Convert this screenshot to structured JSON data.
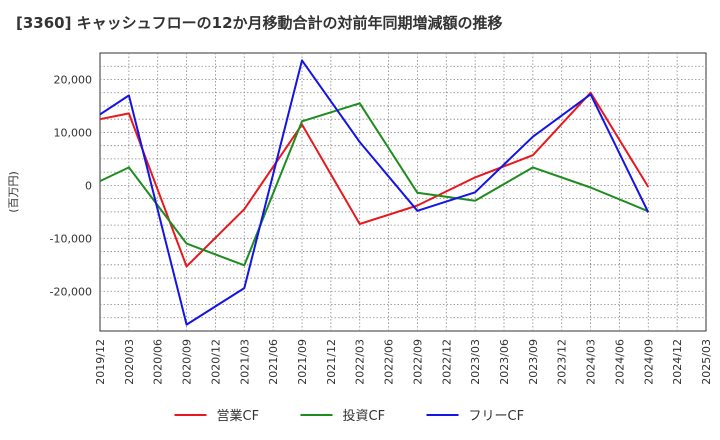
{
  "chart_data": {
    "type": "line",
    "title": "[3360]  キャッシュフローの12か月移動合計の対前年同期増減額の推移",
    "ylabel": "(百万円)",
    "xlabel": "",
    "categories": [
      "2019/12",
      "2020/03",
      "2020/06",
      "2020/09",
      "2020/12",
      "2021/03",
      "2021/06",
      "2021/09",
      "2021/12",
      "2022/03",
      "2022/06",
      "2022/09",
      "2022/12",
      "2023/03",
      "2023/06",
      "2023/09",
      "2023/12",
      "2024/03",
      "2024/06",
      "2024/09",
      "2024/12",
      "2025/03"
    ],
    "yticks": [
      20000,
      10000,
      0,
      -10000,
      -20000
    ],
    "ytick_labels": [
      "20,000",
      "10,000",
      "0",
      "-10,000",
      "-20,000"
    ],
    "ylim": [
      -27500,
      25000
    ],
    "grid": true,
    "legend_position": "bottom",
    "series": [
      {
        "name": "営業CF",
        "color": "#e8191e",
        "x": [
          "2019/12",
          "2020/03",
          "2020/09",
          "2021/03",
          "2021/09",
          "2022/03",
          "2022/09",
          "2023/03",
          "2023/09",
          "2024/03",
          "2024/09"
        ],
        "values": [
          12500,
          13600,
          -15300,
          -4500,
          11500,
          -7300,
          -3800,
          1500,
          5700,
          17500,
          -300
        ]
      },
      {
        "name": "投資CF",
        "color": "#1f8c1f",
        "x": [
          "2019/12",
          "2020/03",
          "2020/09",
          "2021/03",
          "2021/09",
          "2022/03",
          "2022/09",
          "2023/03",
          "2023/09",
          "2024/03",
          "2024/09"
        ],
        "values": [
          800,
          3400,
          -11000,
          -15100,
          12100,
          15500,
          -1400,
          -2900,
          3400,
          -400,
          -4900
        ]
      },
      {
        "name": "フリーCF",
        "color": "#1414e6",
        "x": [
          "2019/12",
          "2020/03",
          "2020/09",
          "2021/03",
          "2021/09",
          "2022/03",
          "2022/09",
          "2023/03",
          "2023/09",
          "2024/03",
          "2024/09"
        ],
        "values": [
          13400,
          17000,
          -26300,
          -19400,
          23600,
          8200,
          -4800,
          -1300,
          9200,
          17200,
          -5100
        ]
      }
    ]
  }
}
